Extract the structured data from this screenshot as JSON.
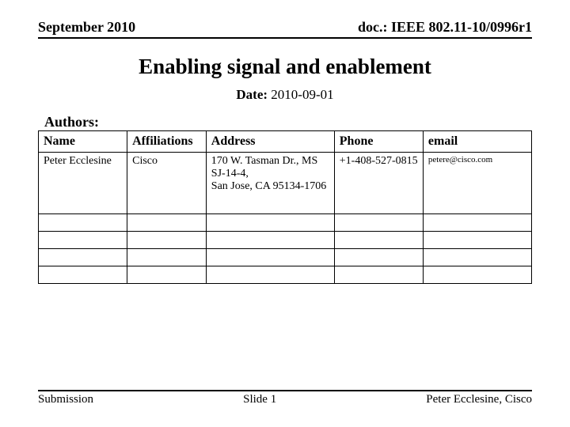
{
  "header": {
    "left": "September 2010",
    "right": "doc.: IEEE 802.11-10/0996r1"
  },
  "title": "Enabling signal and enablement",
  "date": {
    "label": "Date:",
    "value": "2010-09-01"
  },
  "authors_label": "Authors:",
  "table": {
    "columns": [
      "Name",
      "Affiliations",
      "Address",
      "Phone",
      "email"
    ],
    "rows": [
      {
        "name": "Peter Ecclesine",
        "affiliations": "Cisco",
        "address": "170 W. Tasman Dr., MS SJ-14-4,\n San Jose, CA 95134-1706",
        "phone": "+1-408-527-0815",
        "email": "petere@cisco.com"
      }
    ],
    "empty_rows": 4,
    "header_fontsize": 16,
    "cell_fontsize": 14,
    "email_fontsize": 11,
    "border_color": "#000000"
  },
  "footer": {
    "left": "Submission",
    "center": "Slide 1",
    "right": "Peter Ecclesine, Cisco"
  },
  "colors": {
    "text": "#000000",
    "background": "#ffffff",
    "rule": "#000000"
  }
}
